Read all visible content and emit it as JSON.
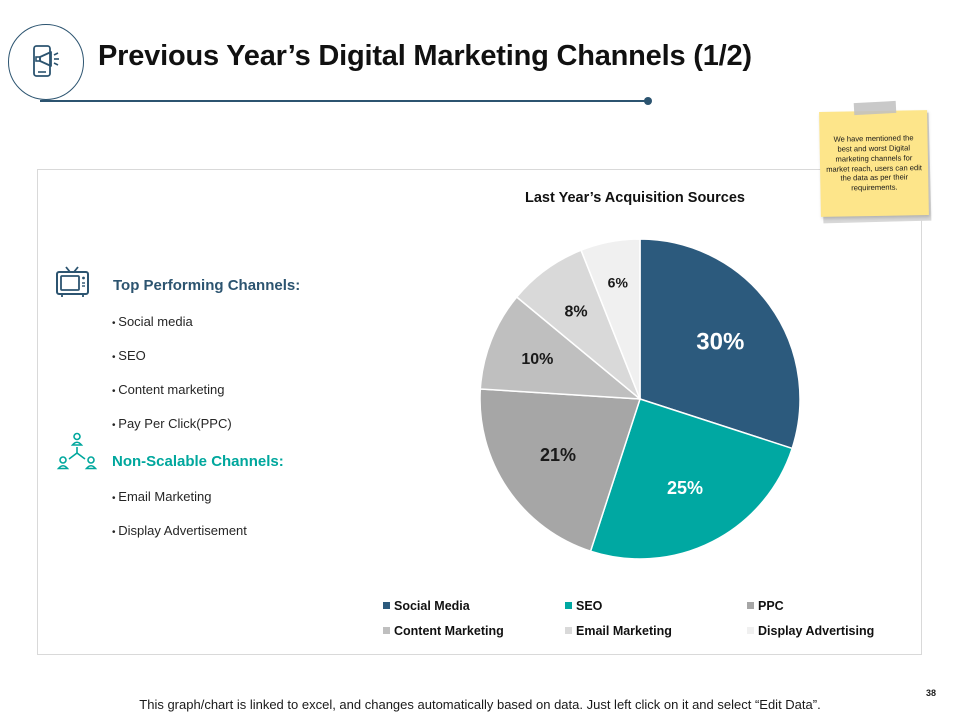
{
  "slide": {
    "title": "Previous Year’s Digital Marketing Channels (1/2)",
    "page_number": "38",
    "footer_note": "This graph/chart is linked to excel, and changes automatically based on data.  Just left click on it and select “Edit Data”."
  },
  "sticky_note": {
    "text": "We have mentioned the best and worst Digital marketing channels for market reach, users can edit the data as per their requirements."
  },
  "top_section": {
    "icon": "tv-icon",
    "heading": "Top Performing Channels:",
    "heading_color": "#2c5470",
    "items": [
      "Social media",
      "SEO",
      "Content marketing",
      "Pay Per Click(PPC)"
    ]
  },
  "bottom_section": {
    "icon": "people-network-icon",
    "heading": "Non-Scalable Channels:",
    "heading_color": "#00a79d",
    "items": [
      "Email Marketing",
      "Display Advertisement"
    ]
  },
  "colors": {
    "accent_dark": "#2c5470",
    "accent_teal": "#00a79d"
  },
  "chart_data": {
    "type": "pie",
    "title": "Last Year’s Acquisition Sources",
    "categories": [
      "Social Media",
      "SEO",
      "PPC",
      "Content Marketing",
      "Email Marketing",
      "Display Advertising"
    ],
    "values": [
      30,
      25,
      21,
      10,
      8,
      6
    ],
    "labels": [
      "30%",
      "25%",
      "21%",
      "10%",
      "8%",
      "6%"
    ],
    "colors": [
      "#2c5a7d",
      "#00a8a2",
      "#a6a6a6",
      "#bfbfbf",
      "#d9d9d9",
      "#f0f0f0"
    ],
    "label_colors": [
      "#ffffff",
      "#ffffff",
      "#1a1a1a",
      "#1a1a1a",
      "#1a1a1a",
      "#1a1a1a"
    ],
    "start_angle_deg": 0,
    "direction": "clockwise",
    "legend_position": "bottom"
  }
}
